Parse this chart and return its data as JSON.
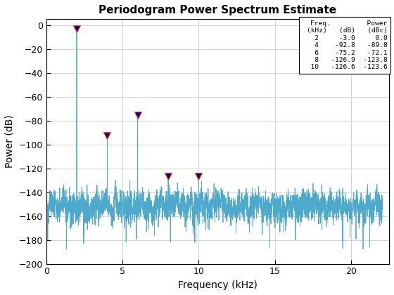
{
  "title": "Periodogram Power Spectrum Estimate",
  "xlabel": "Frequency (kHz)",
  "ylabel": "Power (dB)",
  "xlim": [
    0,
    22.5
  ],
  "ylim": [
    -200,
    5
  ],
  "yticks": [
    0,
    -20,
    -40,
    -60,
    -80,
    -100,
    -120,
    -140,
    -160,
    -180,
    -200
  ],
  "xticks": [
    0,
    5,
    10,
    15,
    20
  ],
  "line_color": "#4DAACC",
  "marker_facecolor": "#00008B",
  "marker_edgecolor": "#FF4400",
  "noise_floor": -152,
  "noise_std": 8,
  "fs": 44.1,
  "peaks": [
    {
      "freq": 2.0,
      "power": -3.0
    },
    {
      "freq": 4.0,
      "power": -92.8
    },
    {
      "freq": 6.0,
      "power": -75.2
    },
    {
      "freq": 8.0,
      "power": -126.9
    },
    {
      "freq": 10.0,
      "power": -126.6
    }
  ],
  "bg_color": "#FFFFFF",
  "figsize": [
    5.6,
    4.2
  ],
  "dpi": 100
}
